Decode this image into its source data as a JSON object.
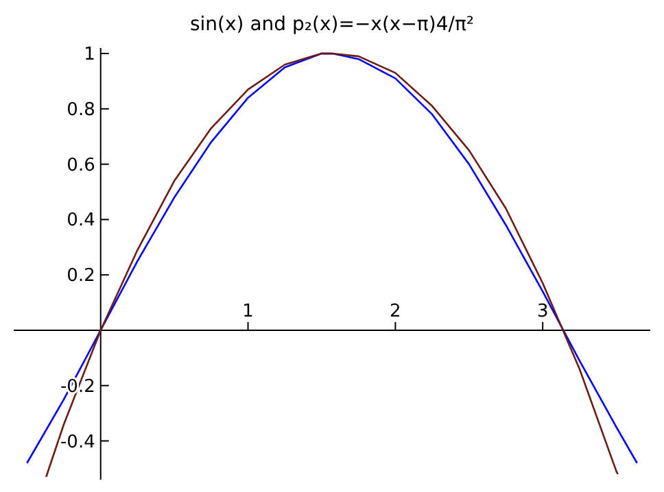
{
  "chart_data": {
    "type": "line",
    "title": "sin(x) and p₂(x)=−x(x−π)4/π²",
    "xlim": [
      -0.59,
      3.73
    ],
    "ylim": [
      -0.54,
      1.02
    ],
    "xticks": [
      1,
      2,
      3
    ],
    "yticks": [
      -0.4,
      -0.2,
      0.2,
      0.4,
      0.6,
      0.8,
      1
    ],
    "series": [
      {
        "color": "#0000ff",
        "x": [
          -0.5,
          -0.25,
          0,
          0.25,
          0.5,
          0.75,
          1,
          1.25,
          1.5,
          1.571,
          1.75,
          2,
          2.25,
          2.5,
          2.75,
          3,
          3.25,
          3.5,
          3.64
        ],
        "values": [
          -0.48,
          -0.25,
          0,
          0.25,
          0.48,
          0.68,
          0.84,
          0.95,
          1,
          1,
          0.98,
          0.91,
          0.78,
          0.6,
          0.38,
          0.14,
          -0.11,
          -0.35,
          -0.48
        ]
      },
      {
        "color": "#6b1d14",
        "x": [
          -0.37,
          -0.25,
          0,
          0.25,
          0.5,
          0.75,
          1,
          1.25,
          1.5,
          1.571,
          1.75,
          2,
          2.25,
          2.5,
          2.75,
          3,
          3.25,
          3.5,
          3.51
        ],
        "values": [
          -0.53,
          -0.34,
          0,
          0.29,
          0.54,
          0.73,
          0.87,
          0.96,
          1,
          1,
          0.99,
          0.93,
          0.81,
          0.65,
          0.44,
          0.17,
          -0.14,
          -0.51,
          -0.52
        ]
      }
    ]
  }
}
